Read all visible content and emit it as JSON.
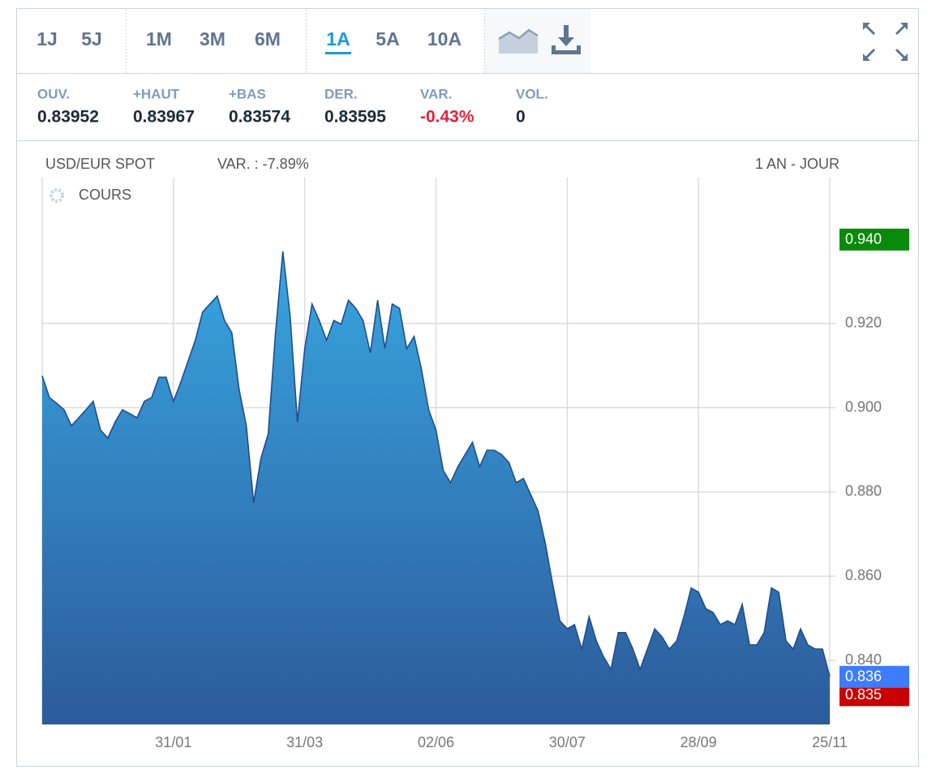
{
  "toolbar": {
    "periods": [
      "1J",
      "5J",
      "1M",
      "3M",
      "6M",
      "1A",
      "5A",
      "10A"
    ]
  },
  "stats": [
    {
      "label": "OUV.",
      "value": "0.83952"
    },
    {
      "label": "+HAUT",
      "value": "0.83967"
    },
    {
      "label": "+BAS",
      "value": "0.83574"
    },
    {
      "label": "DER.",
      "value": "0.83595"
    },
    {
      "label": "VAR.",
      "value": "-0.43%"
    },
    {
      "label": "VOL.",
      "value": "0"
    }
  ],
  "chart_data": {
    "type": "area",
    "title": "USD/EUR SPOT",
    "subtitle": "VAR. : -7.89%",
    "annotation": "1 AN - JOUR",
    "categories": [
      null,
      null,
      null,
      null,
      null,
      null,
      null,
      null,
      null,
      null,
      null,
      null,
      null,
      null,
      null,
      null,
      null,
      null,
      "31/01",
      null,
      null,
      null,
      null,
      null,
      null,
      null,
      null,
      null,
      null,
      null,
      null,
      null,
      null,
      null,
      null,
      null,
      "31/03",
      null,
      null,
      null,
      null,
      null,
      null,
      null,
      null,
      null,
      null,
      null,
      null,
      null,
      null,
      null,
      null,
      null,
      "02/06",
      null,
      null,
      null,
      null,
      null,
      null,
      null,
      null,
      null,
      null,
      null,
      null,
      null,
      null,
      null,
      null,
      null,
      "30/07",
      null,
      null,
      null,
      null,
      null,
      null,
      null,
      null,
      null,
      null,
      null,
      null,
      null,
      null,
      null,
      null,
      null,
      "28/09",
      null,
      null,
      null,
      null,
      null,
      null,
      null,
      null,
      null,
      null,
      null,
      null,
      null,
      null,
      null,
      null,
      null,
      "25/11"
    ],
    "series": [
      {
        "name": "COURS",
        "color": "#1f4e8c",
        "values": [
          0.9076,
          0.9024,
          0.901,
          0.8995,
          0.8957,
          0.8976,
          0.8995,
          0.9015,
          0.8947,
          0.8928,
          0.8966,
          0.8995,
          0.8986,
          0.8976,
          0.9015,
          0.9024,
          0.9072,
          0.9072,
          0.9015,
          0.906,
          0.911,
          0.916,
          0.9227,
          0.9246,
          0.9265,
          0.9207,
          0.9178,
          0.9043,
          0.8957,
          0.8774,
          0.888,
          0.8938,
          0.9178,
          0.9371,
          0.9217,
          0.8966,
          0.914,
          0.9246,
          0.9207,
          0.916,
          0.9207,
          0.9198,
          0.9255,
          0.9236,
          0.9207,
          0.913,
          0.9255,
          0.914,
          0.9246,
          0.9236,
          0.914,
          0.9169,
          0.9092,
          0.8995,
          0.8947,
          0.8851,
          0.8822,
          0.886,
          0.8889,
          0.8918,
          0.886,
          0.8899,
          0.8899,
          0.8889,
          0.887,
          0.8822,
          0.8832,
          0.8793,
          0.8755,
          0.8677,
          0.8581,
          0.8494,
          0.8475,
          0.8485,
          0.8427,
          0.8504,
          0.8446,
          0.8408,
          0.8379,
          0.8466,
          0.8466,
          0.8427,
          0.8379,
          0.8427,
          0.8475,
          0.8456,
          0.8427,
          0.8446,
          0.8504,
          0.8572,
          0.8562,
          0.8523,
          0.8514,
          0.8485,
          0.8494,
          0.8485,
          0.8533,
          0.8437,
          0.8437,
          0.8466,
          0.8572,
          0.8562,
          0.8446,
          0.8427,
          0.8475,
          0.8437,
          0.8427,
          0.8427,
          0.8362
        ]
      }
    ],
    "ylim": [
      0.8248,
      0.9546
    ],
    "yticks": [
      {
        "value": 0.84,
        "label": "0.840"
      },
      {
        "value": 0.86,
        "label": "0.860"
      },
      {
        "value": 0.88,
        "label": "0.880"
      },
      {
        "value": 0.9,
        "label": "0.900"
      },
      {
        "value": 0.92,
        "label": "0.920"
      }
    ],
    "markers": [
      {
        "value": 0.94,
        "label": "0.940",
        "color": "#0a8a0a"
      },
      {
        "value": 0.8353,
        "label": "0.835",
        "color": "#c80000"
      },
      {
        "value": 0.8362,
        "label": "0.836",
        "color": "#3d7cff"
      }
    ],
    "grid": true
  }
}
